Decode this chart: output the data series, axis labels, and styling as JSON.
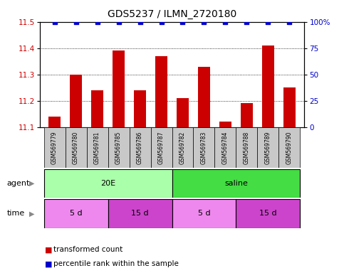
{
  "title": "GDS5237 / ILMN_2720180",
  "samples": [
    "GSM569779",
    "GSM569780",
    "GSM569781",
    "GSM569785",
    "GSM569786",
    "GSM569787",
    "GSM569782",
    "GSM569783",
    "GSM569784",
    "GSM569788",
    "GSM569789",
    "GSM569790"
  ],
  "bar_values": [
    11.14,
    11.3,
    11.24,
    11.39,
    11.24,
    11.37,
    11.21,
    11.33,
    11.12,
    11.19,
    11.41,
    11.25
  ],
  "percentile_values": [
    100,
    100,
    100,
    100,
    100,
    100,
    100,
    100,
    100,
    100,
    100,
    100
  ],
  "bar_color": "#cc0000",
  "dot_color": "#0000cc",
  "ylim_left": [
    11.1,
    11.5
  ],
  "ylim_right": [
    0,
    100
  ],
  "yticks_left": [
    11.1,
    11.2,
    11.3,
    11.4,
    11.5
  ],
  "yticks_right": [
    0,
    25,
    50,
    75,
    100
  ],
  "ytick_right_labels": [
    "0",
    "25",
    "50",
    "75",
    "100%"
  ],
  "agent_groups": [
    {
      "label": "20E",
      "start": 0,
      "end": 6,
      "color": "#aaffaa"
    },
    {
      "label": "saline",
      "start": 6,
      "end": 12,
      "color": "#44dd44"
    }
  ],
  "time_groups": [
    {
      "label": "5 d",
      "start": 0,
      "end": 3,
      "color": "#ee88ee"
    },
    {
      "label": "15 d",
      "start": 3,
      "end": 6,
      "color": "#cc44cc"
    },
    {
      "label": "5 d",
      "start": 6,
      "end": 9,
      "color": "#ee88ee"
    },
    {
      "label": "15 d",
      "start": 9,
      "end": 12,
      "color": "#cc44cc"
    }
  ],
  "legend_items": [
    {
      "label": "transformed count",
      "color": "#cc0000"
    },
    {
      "label": "percentile rank within the sample",
      "color": "#0000cc"
    }
  ],
  "bg_color": "#ffffff",
  "label_box_color": "#c8c8c8",
  "grid_color": "#000000",
  "title_fontsize": 10,
  "tick_fontsize": 7.5,
  "sample_fontsize": 5.5,
  "row_fontsize": 8,
  "legend_fontsize": 7.5
}
